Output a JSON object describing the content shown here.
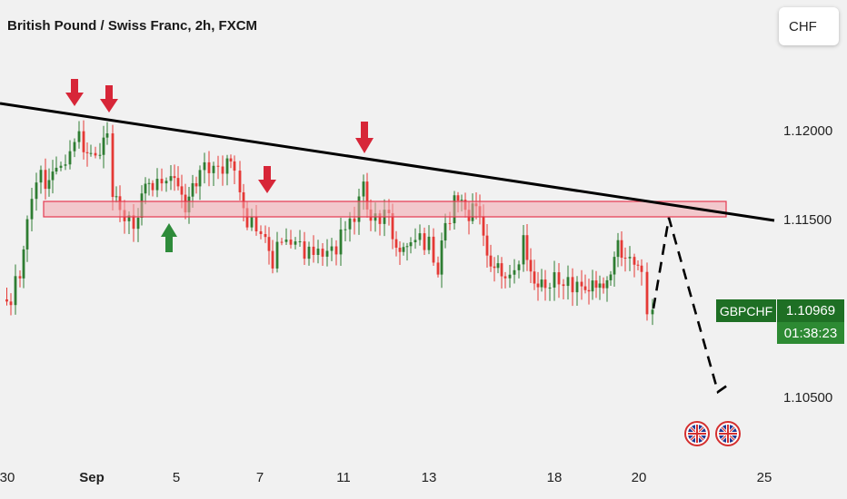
{
  "header": {
    "title": "British Pound / Swiss Franc, 2h, FXCM",
    "currency_button": "CHF"
  },
  "price_tag": {
    "symbol": "GBPCHF",
    "price": "1.10969",
    "countdown": "01:38:23"
  },
  "colors": {
    "up": "#2e7d32",
    "down": "#e53935",
    "zone_fill": "#f2a6ad",
    "zone_border": "#e53950",
    "trendline": "#000000",
    "arrow_down": "#d72638",
    "arrow_up": "#2e8b3a",
    "background": "#f1f1f1"
  },
  "chart_data": {
    "type": "candlestick",
    "y_axis_ticks": [
      "1.12000",
      "1.11500",
      "1.10500"
    ],
    "x_axis_ticks": [
      "30",
      "Sep",
      "5",
      "7",
      "11",
      "13",
      "18",
      "20",
      "25"
    ],
    "ylim": [
      1.102,
      1.1235
    ],
    "last_price": 1.10969,
    "resistance_zone": [
      1.1149,
      1.1158
    ],
    "trendline": [
      {
        "x": "Aug 29",
        "y": 1.121
      },
      {
        "x": "Sep 24",
        "y": 1.1149
      }
    ],
    "projection": [
      {
        "x": "Sep 20",
        "y": 1.11
      },
      {
        "x": "Sep 21",
        "y": 1.1149
      },
      {
        "x": "Sep 23",
        "y": 1.1053
      },
      {
        "x": "Sep 23.5",
        "y": 1.106
      }
    ],
    "annotations": [
      "sell-arrow",
      "sell-arrow",
      "buy-arrow",
      "sell-arrow",
      "sell-arrow"
    ],
    "events": [
      "uk-flag",
      "uk-flag"
    ]
  }
}
